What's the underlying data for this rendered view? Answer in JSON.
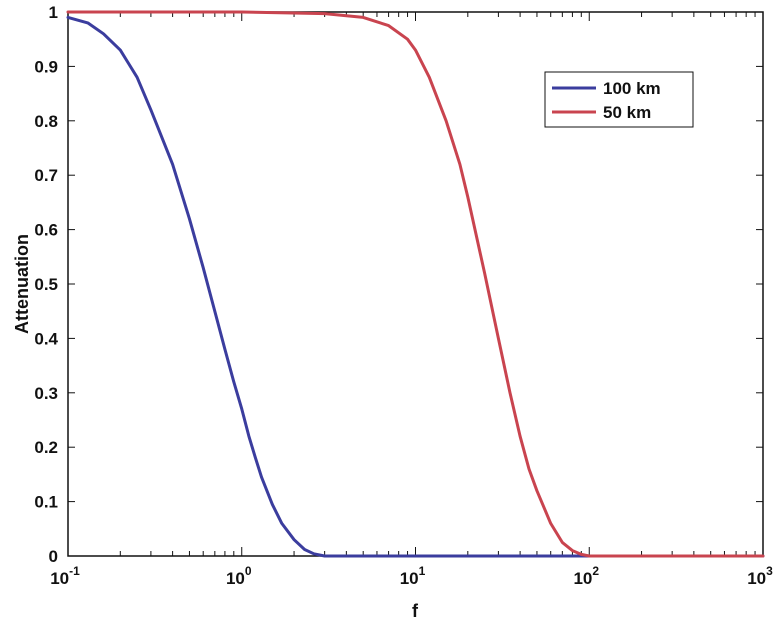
{
  "chart_data": {
    "type": "line",
    "title": "",
    "xlabel": "f",
    "ylabel": "Attenuation",
    "xscale": "log",
    "xlim": [
      0.1,
      1000
    ],
    "ylim": [
      0,
      1
    ],
    "grid": false,
    "legend_position": "top-right",
    "x_ticks": [
      {
        "value": 0.1,
        "base": "10",
        "exp": "-1"
      },
      {
        "value": 1,
        "base": "10",
        "exp": "0"
      },
      {
        "value": 10,
        "base": "10",
        "exp": "1"
      },
      {
        "value": 100,
        "base": "10",
        "exp": "2"
      },
      {
        "value": 1000,
        "base": "10",
        "exp": "3"
      }
    ],
    "y_ticks": [
      "0",
      "0.1",
      "0.2",
      "0.3",
      "0.4",
      "0.5",
      "0.6",
      "0.7",
      "0.8",
      "0.9",
      "1"
    ],
    "series": [
      {
        "name": "100 km",
        "color": "#3b3d9e",
        "x": [
          0.1,
          0.13,
          0.16,
          0.2,
          0.25,
          0.3,
          0.4,
          0.5,
          0.6,
          0.7,
          0.8,
          0.9,
          1.0,
          1.1,
          1.2,
          1.3,
          1.5,
          1.7,
          2.0,
          2.3,
          2.6,
          3.0,
          4,
          10,
          100,
          1000
        ],
        "y": [
          0.99,
          0.98,
          0.96,
          0.93,
          0.88,
          0.82,
          0.72,
          0.62,
          0.53,
          0.45,
          0.38,
          0.32,
          0.27,
          0.22,
          0.18,
          0.145,
          0.095,
          0.06,
          0.03,
          0.012,
          0.004,
          0.0,
          0.0,
          0.0,
          0.0,
          0.0
        ]
      },
      {
        "name": "50 km",
        "color": "#c9444f",
        "x": [
          0.1,
          1,
          3,
          5,
          7,
          9,
          10,
          12,
          15,
          18,
          20,
          25,
          30,
          35,
          40,
          45,
          50,
          60,
          70,
          80,
          90,
          100,
          200,
          1000
        ],
        "y": [
          1.0,
          1.0,
          0.997,
          0.99,
          0.975,
          0.95,
          0.93,
          0.88,
          0.8,
          0.72,
          0.66,
          0.52,
          0.4,
          0.3,
          0.22,
          0.16,
          0.12,
          0.06,
          0.025,
          0.01,
          0.003,
          0.0,
          0.0,
          0.0
        ]
      }
    ]
  }
}
